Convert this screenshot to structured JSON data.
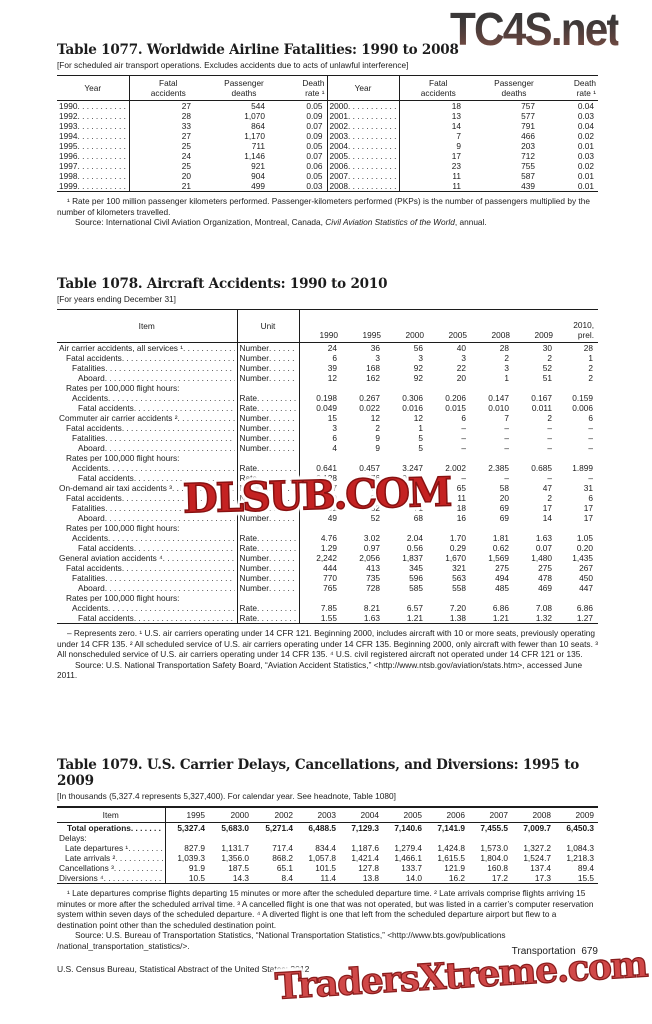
{
  "watermarks": {
    "top": "TC4S.net",
    "middle": "DLSUB.COM",
    "bottom": "TradersXtreme.com",
    "stamp_red": "#c42222",
    "gradient_top": "#3b3838",
    "gradient_bottom": "#7d4f45"
  },
  "footer": {
    "left": "U.S. Census Bureau, Statistical Abstract of the United States: 2012",
    "section": "Transportation",
    "page_number": "679"
  },
  "t1077": {
    "title": "Table 1077. Worldwide Airline Fatalities: 1990 to 2008",
    "note": "[For scheduled air transport operations. Excludes accidents due to acts of unlawful interference]",
    "headers": {
      "year": "Year",
      "fatal": "Fatal\naccidents",
      "deaths": "Passenger\ndeaths",
      "rate": "Death\nrate ¹"
    },
    "left_rows": [
      [
        "1990",
        "27",
        "544",
        "0.05"
      ],
      [
        "1992",
        "28",
        "1,070",
        "0.09"
      ],
      [
        "1993",
        "33",
        "864",
        "0.07"
      ],
      [
        "1994",
        "27",
        "1,170",
        "0.09"
      ],
      [
        "1995",
        "25",
        "711",
        "0.05"
      ],
      [
        "1996",
        "24",
        "1,146",
        "0.07"
      ],
      [
        "1997",
        "25",
        "921",
        "0.06"
      ],
      [
        "1998",
        "20",
        "904",
        "0.05"
      ],
      [
        "1999",
        "21",
        "499",
        "0.03"
      ]
    ],
    "right_rows": [
      [
        "2000",
        "18",
        "757",
        "0.04"
      ],
      [
        "2001",
        "13",
        "577",
        "0.03"
      ],
      [
        "2002",
        "14",
        "791",
        "0.04"
      ],
      [
        "2003",
        "7",
        "466",
        "0.02"
      ],
      [
        "2004",
        "9",
        "203",
        "0.01"
      ],
      [
        "2005",
        "17",
        "712",
        "0.03"
      ],
      [
        "2006",
        "23",
        "755",
        "0.02"
      ],
      [
        "2007",
        "11",
        "587",
        "0.01"
      ],
      [
        "2008",
        "11",
        "439",
        "0.01"
      ]
    ],
    "footnote": "¹ Rate per 100 million passenger kilometers performed. Passenger-kilometers performed (PKPs) is the number of passengers multiplied by the number of kilometers travelled.",
    "source_prefix": "Source: International Civil Aviation Organization, Montreal, Canada, ",
    "source_italic": "Civil Aviation Statistics of the World",
    "source_suffix": ", annual."
  },
  "t1078": {
    "title": "Table 1078. Aircraft Accidents: 1990 to 2010",
    "note": "[For years ending December 31]",
    "item_header": "Item",
    "unit_header": "Unit",
    "years": [
      "1990",
      "1995",
      "2000",
      "2005",
      "2008",
      "2009",
      "2010,\nprel."
    ],
    "rows": [
      {
        "label": "Air carrier accidents, all services ¹",
        "indent": 0,
        "unit": "Number",
        "values": [
          "24",
          "36",
          "56",
          "40",
          "28",
          "30",
          "28"
        ]
      },
      {
        "label": "Fatal accidents",
        "indent": 1,
        "unit": "Number",
        "values": [
          "6",
          "3",
          "3",
          "3",
          "2",
          "2",
          "1"
        ]
      },
      {
        "label": "Fatalities",
        "indent": 2,
        "unit": "Number",
        "values": [
          "39",
          "168",
          "92",
          "22",
          "3",
          "52",
          "2"
        ]
      },
      {
        "label": "Aboard",
        "indent": 3,
        "unit": "Number",
        "values": [
          "12",
          "162",
          "92",
          "20",
          "1",
          "51",
          "2"
        ]
      },
      {
        "label": "Rates per 100,000 flight hours:",
        "indent": 1,
        "section": true
      },
      {
        "label": "Accidents",
        "indent": 2,
        "unit": "Rate",
        "values": [
          "0.198",
          "0.267",
          "0.306",
          "0.206",
          "0.147",
          "0.167",
          "0.159"
        ]
      },
      {
        "label": "Fatal accidents",
        "indent": 3,
        "unit": "Rate",
        "values": [
          "0.049",
          "0.022",
          "0.016",
          "0.015",
          "0.010",
          "0.011",
          "0.006"
        ]
      },
      {
        "label": "Commuter air carrier accidents ²",
        "indent": 0,
        "unit": "Number",
        "values": [
          "15",
          "12",
          "12",
          "6",
          "7",
          "2",
          "6"
        ]
      },
      {
        "label": "Fatal accidents",
        "indent": 1,
        "unit": "Number",
        "values": [
          "3",
          "2",
          "1",
          "–",
          "–",
          "–",
          "–"
        ]
      },
      {
        "label": "Fatalities",
        "indent": 2,
        "unit": "Number",
        "values": [
          "6",
          "9",
          "5",
          "–",
          "–",
          "–",
          "–"
        ]
      },
      {
        "label": "Aboard",
        "indent": 3,
        "unit": "Number",
        "values": [
          "4",
          "9",
          "5",
          "–",
          "–",
          "–",
          "–"
        ]
      },
      {
        "label": "Rates per 100,000 flight hours:",
        "indent": 1,
        "section": true
      },
      {
        "label": "Accidents",
        "indent": 2,
        "unit": "Rate",
        "values": [
          "0.641",
          "0.457",
          "3.247",
          "2.002",
          "2.385",
          "0.685",
          "1.899"
        ]
      },
      {
        "label": "Fatal accidents",
        "indent": 3,
        "unit": "Rate",
        "values": [
          "0.128",
          "0.076",
          "0.271",
          "–",
          "–",
          "–",
          "–"
        ]
      },
      {
        "label": "On-demand air taxi accidents ³",
        "indent": 0,
        "unit": "Number",
        "values": [
          "107",
          "75",
          "80",
          "65",
          "58",
          "47",
          "31"
        ]
      },
      {
        "label": "Fatal accidents",
        "indent": 1,
        "unit": "Number",
        "values": [
          "29",
          "24",
          "22",
          "11",
          "20",
          "2",
          "6"
        ]
      },
      {
        "label": "Fatalities",
        "indent": 2,
        "unit": "Number",
        "values": [
          "51",
          "52",
          "71",
          "18",
          "69",
          "17",
          "17"
        ]
      },
      {
        "label": "Aboard",
        "indent": 3,
        "unit": "Number",
        "values": [
          "49",
          "52",
          "68",
          "16",
          "69",
          "14",
          "17"
        ]
      },
      {
        "label": "Rates per 100,000 flight hours:",
        "indent": 1,
        "section": true
      },
      {
        "label": "Accidents",
        "indent": 2,
        "unit": "Rate",
        "values": [
          "4.76",
          "3.02",
          "2.04",
          "1.70",
          "1.81",
          "1.63",
          "1.05"
        ]
      },
      {
        "label": "Fatal accidents",
        "indent": 3,
        "unit": "Rate",
        "values": [
          "1.29",
          "0.97",
          "0.56",
          "0.29",
          "0.62",
          "0.07",
          "0.20"
        ]
      },
      {
        "label": "General aviation accidents ⁴",
        "indent": 0,
        "unit": "Number",
        "values": [
          "2,242",
          "2,056",
          "1,837",
          "1,670",
          "1,569",
          "1,480",
          "1,435"
        ]
      },
      {
        "label": "Fatal accidents",
        "indent": 1,
        "unit": "Number",
        "values": [
          "444",
          "413",
          "345",
          "321",
          "275",
          "275",
          "267"
        ]
      },
      {
        "label": "Fatalities",
        "indent": 2,
        "unit": "Number",
        "values": [
          "770",
          "735",
          "596",
          "563",
          "494",
          "478",
          "450"
        ]
      },
      {
        "label": "Aboard",
        "indent": 3,
        "unit": "Number",
        "values": [
          "765",
          "728",
          "585",
          "558",
          "485",
          "469",
          "447"
        ]
      },
      {
        "label": "Rates per 100,000 flight hours:",
        "indent": 1,
        "section": true
      },
      {
        "label": "Accidents",
        "indent": 2,
        "unit": "Rate",
        "values": [
          "7.85",
          "8.21",
          "6.57",
          "7.20",
          "6.86",
          "7.08",
          "6.86"
        ]
      },
      {
        "label": "Fatal accidents",
        "indent": 3,
        "unit": "Rate",
        "values": [
          "1.55",
          "1.63",
          "1.21",
          "1.38",
          "1.21",
          "1.32",
          "1.27"
        ]
      }
    ],
    "footnote": "– Represents zero. ¹ U.S. air carriers operating under 14 CFR 121. Beginning 2000, includes aircraft with 10 or more seats, previously operating under 14 CFR 135. ² All scheduled service of U.S. air carriers operating under 14 CFR 135. Beginning 2000, only aircraft with fewer than 10 seats. ³ All nonscheduled service of U.S. air carriers operating under 14 CFR 135. ⁴ U.S. civil registered aircraft not operated under 14 CFR 121 or 135.",
    "source": "Source: U.S. National Transportation Safety Board, “Aviation Accident Statistics,” <http://www.ntsb.gov/aviation/stats.htm>, accessed June 2011."
  },
  "t1079": {
    "title": "Table 1079. U.S. Carrier Delays, Cancellations, and Diversions: 1995 to 2009",
    "note": "[In thousands (5,327.4 represents 5,327,400). For calendar year. See headnote, Table 1080]",
    "headers": [
      "Item",
      "1995",
      "2000",
      "2002",
      "2003",
      "2004",
      "2005",
      "2006",
      "2007",
      "2008",
      "2009"
    ],
    "rows": [
      {
        "label": "Total operations",
        "indent": 1,
        "bold": true,
        "first": true,
        "values": [
          "5,327.4",
          "5,683.0",
          "5,271.4",
          "6,488.5",
          "7,129.3",
          "7,140.6",
          "7,141.9",
          "7,455.5",
          "7,009.7",
          "6,450.3"
        ]
      },
      {
        "label": "Delays:",
        "indent": 0,
        "section": true,
        "gap": true
      },
      {
        "label": "Late departures ¹",
        "indent": 1,
        "values": [
          "827.9",
          "1,131.7",
          "717.4",
          "834.4",
          "1,187.6",
          "1,279.4",
          "1,424.8",
          "1,573.0",
          "1,327.2",
          "1,084.3"
        ]
      },
      {
        "label": "Late arrivals ²",
        "indent": 1,
        "values": [
          "1,039.3",
          "1,356.0",
          "868.2",
          "1,057.8",
          "1,421.4",
          "1,466.1",
          "1,615.5",
          "1,804.0",
          "1,524.7",
          "1,218.3"
        ]
      },
      {
        "label": "Cancellations ³",
        "indent": 0,
        "values": [
          "91.9",
          "187.5",
          "65.1",
          "101.5",
          "127.8",
          "133.7",
          "121.9",
          "160.8",
          "137.4",
          "89.4"
        ]
      },
      {
        "label": "Diversions ⁴",
        "indent": 0,
        "values": [
          "10.5",
          "14.3",
          "8.4",
          "11.4",
          "13.8",
          "14.0",
          "16.2",
          "17.2",
          "17.3",
          "15.5"
        ]
      }
    ],
    "footnote": "¹ Late departures comprise flights departing 15 minutes or more after the scheduled departure time. ² Late arrivals comprise flights arriving 15 minutes or more after the scheduled arrival time. ³ A cancelled flight is one that was not operated, but was listed in a carrier’s computer reservation system within seven days of the scheduled departure. ⁴ A diverted flight is one that left from the scheduled departure airport but flew to a destination point other than the scheduled destination point.",
    "source": "Source: U.S. Bureau of Transportation Statistics, “National Transportation Statistics,” <http://www.bts.gov/publications /national_transportation_statistics/>."
  }
}
